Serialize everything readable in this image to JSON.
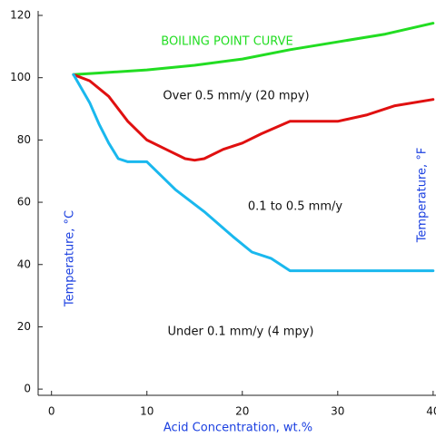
{
  "chart_data": {
    "type": "line",
    "xlabel": "Acid Concentration, wt.%",
    "ylabel": "Temperature, °C",
    "y2label": "Temperature, °F",
    "xlim": [
      -1.4,
      40.3
    ],
    "ylim": [
      -2,
      120
    ],
    "xticks": [
      0,
      10,
      20,
      30,
      40
    ],
    "yticks": [
      0,
      20,
      40,
      60,
      80,
      100,
      120
    ],
    "annotations": [
      "BOILING POINT CURVE",
      "Over 0.5 mm/y (20 mpy)",
      "0.1 to 0.5 mm/y",
      "Under 0.1 mm/y (4 mpy)"
    ],
    "series": [
      {
        "color": "#22dd22",
        "x": [
          2.3,
          5,
          10,
          15,
          20,
          25,
          30,
          35,
          40
        ],
        "values": [
          101,
          101.5,
          102.5,
          104,
          106,
          109,
          111.5,
          114,
          117.5
        ]
      },
      {
        "color": "#e01010",
        "x": [
          2.3,
          4,
          6,
          8,
          10,
          12,
          14,
          15,
          16,
          18,
          20,
          22,
          25,
          28,
          30,
          33,
          36,
          40
        ],
        "values": [
          101,
          99,
          94,
          86,
          80,
          77,
          74,
          73.5,
          74,
          77,
          79,
          82,
          86,
          86,
          86,
          88,
          91,
          93
        ]
      },
      {
        "color": "#1ab8ee",
        "x": [
          2.3,
          4,
          5,
          6,
          7,
          8,
          10,
          11,
          13,
          16,
          19,
          21,
          23,
          25,
          30,
          40
        ],
        "values": [
          101,
          92,
          85,
          79,
          74,
          73,
          73,
          70,
          64,
          57,
          49,
          44,
          42,
          38,
          38,
          38
        ]
      }
    ]
  }
}
